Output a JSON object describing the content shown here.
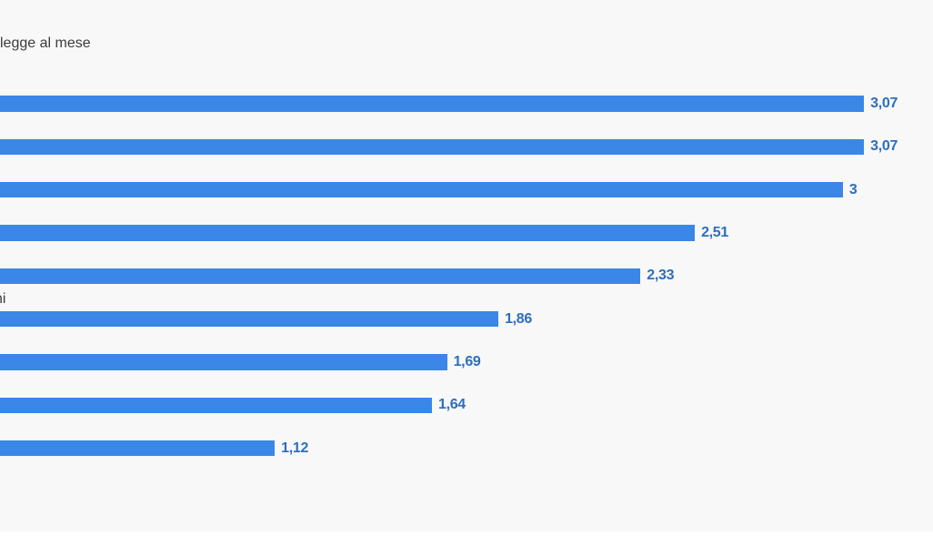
{
  "page": {
    "background_color": "#f8f8f8",
    "footer_strip_color": "#ffffff"
  },
  "chart_data": {
    "type": "bar",
    "orientation": "horizontal",
    "title_visible_fragment": "legge al mese",
    "visible_category_fragment": "ni",
    "values": [
      3.07,
      3.07,
      3,
      2.51,
      2.33,
      1.86,
      1.69,
      1.64,
      1.12
    ],
    "value_labels": [
      "3,07",
      "3,07",
      "3",
      "2,51",
      "2,33",
      "1,86",
      "1,69",
      "1,64",
      "1,12"
    ],
    "bar_color": "#3a87e8",
    "value_label_color": "#2d6ebc",
    "text_color": "#3c3c3c",
    "layout_hints": {
      "bars_start_offscreen_left": true,
      "value_labels_position": "right-of-bar",
      "grid": false,
      "axes_visible": false,
      "legend": "none"
    }
  }
}
